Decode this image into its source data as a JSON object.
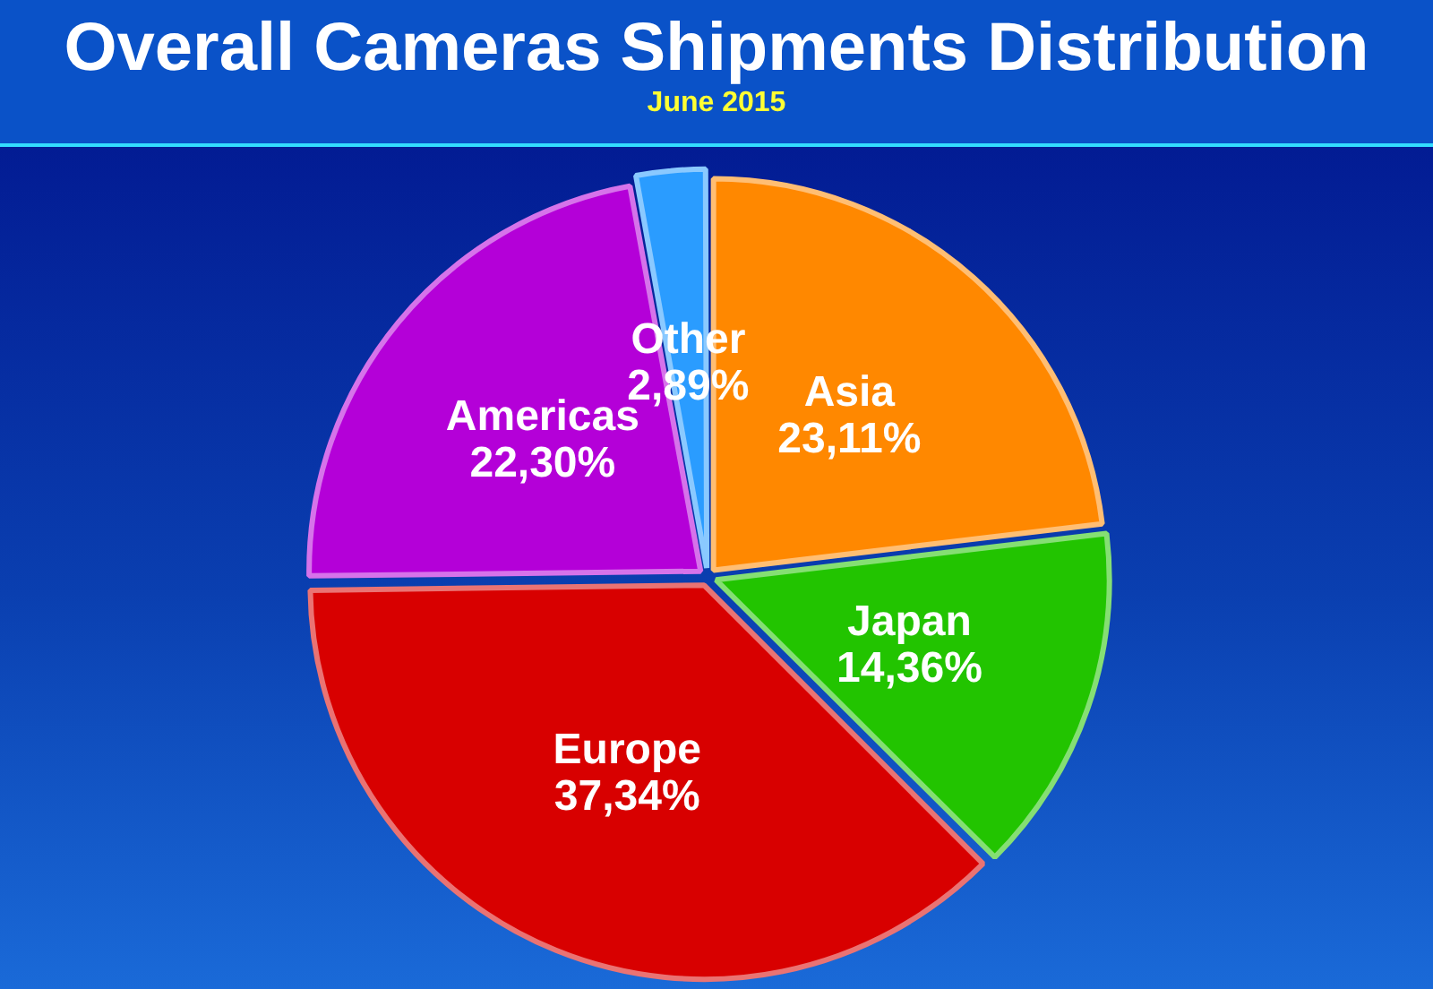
{
  "chart_data": {
    "type": "pie",
    "title": "Overall Cameras Shipments Distribution",
    "subtitle": "June 2015",
    "categories": [
      "Asia",
      "Japan",
      "Europe",
      "Americas",
      "Other"
    ],
    "values": [
      23.11,
      14.36,
      37.34,
      22.3,
      2.89
    ],
    "value_labels": [
      "23,11%",
      "14,36%",
      "37,34%",
      "22,30%",
      "2,89%"
    ],
    "colors": [
      "#ff8800",
      "#22c400",
      "#d80000",
      "#b400d8",
      "#2a9cff"
    ],
    "legend": false
  }
}
